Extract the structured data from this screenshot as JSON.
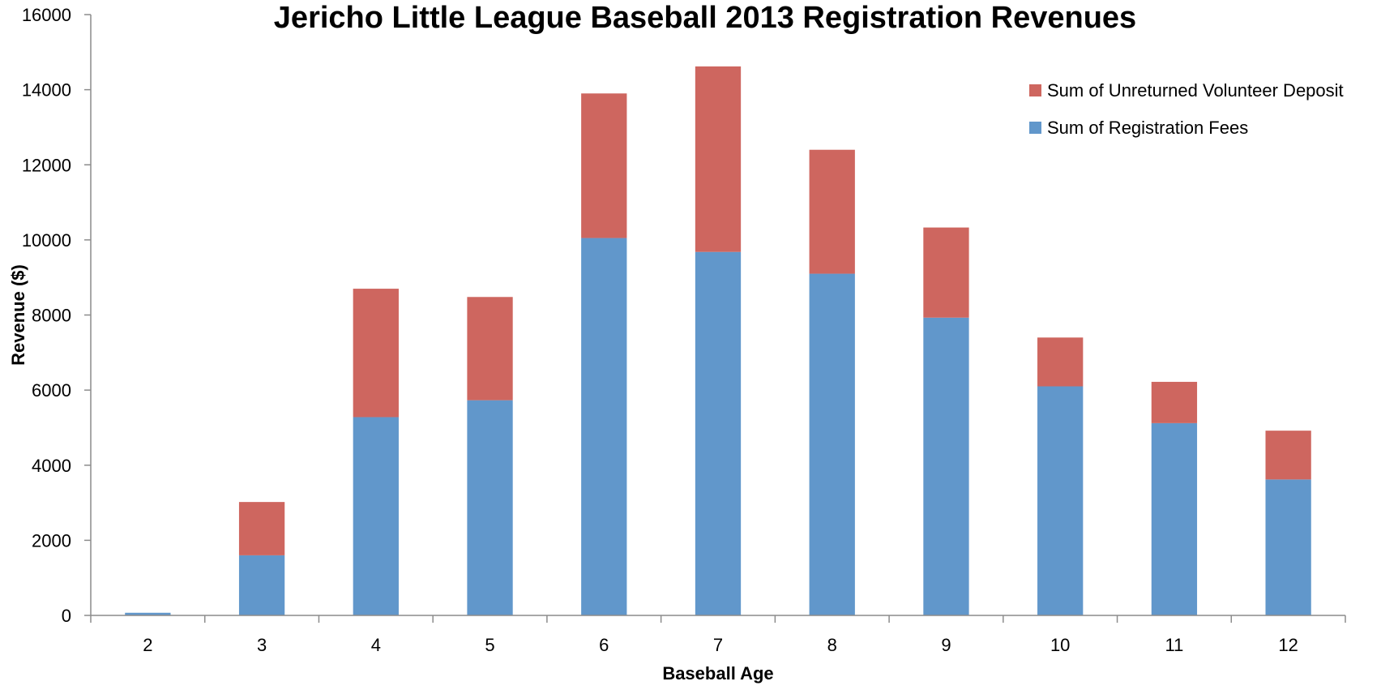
{
  "chart_data": {
    "type": "bar",
    "stacked": true,
    "title": "Jericho Little League Baseball 2013 Registration Revenues",
    "xlabel": "Baseball Age",
    "ylabel": "Revenue ($)",
    "categories": [
      "2",
      "3",
      "4",
      "5",
      "6",
      "7",
      "8",
      "9",
      "10",
      "11",
      "12"
    ],
    "series": [
      {
        "name": "Sum of Registration Fees",
        "color": "#6197CB",
        "values": [
          70,
          1600,
          5280,
          5730,
          10050,
          9680,
          9100,
          7930,
          6100,
          5120,
          3620
        ]
      },
      {
        "name": "Sum of Unreturned Volunteer Deposit",
        "color": "#CE665F",
        "values": [
          0,
          1420,
          3420,
          2750,
          3850,
          4940,
          3300,
          2400,
          1300,
          1100,
          1300
        ]
      }
    ],
    "ylim": [
      0,
      16000
    ],
    "yticks": [
      "0",
      "2000",
      "4000",
      "6000",
      "8000",
      "10000",
      "12000",
      "14000",
      "16000"
    ],
    "grid": false,
    "legend": {
      "placement": "top-right",
      "entries": [
        "Sum of Unreturned Volunteer Deposit",
        "Sum of Registration Fees"
      ]
    }
  }
}
